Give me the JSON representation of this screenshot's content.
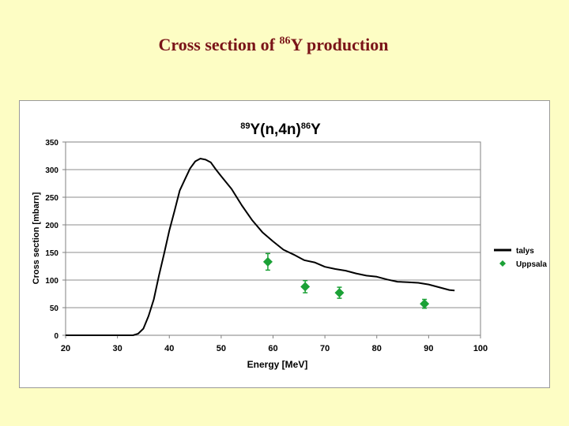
{
  "slide": {
    "title_prefix": "Cross section of ",
    "title_sup": "86",
    "title_suffix": "Y production"
  },
  "chart_data": {
    "type": "line",
    "title_parts": {
      "sup1": "89",
      "mid": "Y(n,4n)",
      "sup2": "86",
      "end": "Y"
    },
    "xlabel": "Energy [MeV]",
    "ylabel": "Cross section [mbarn]",
    "xlim": [
      20,
      100
    ],
    "ylim": [
      0,
      350
    ],
    "xticks": [
      20,
      30,
      40,
      50,
      60,
      70,
      80,
      90,
      100
    ],
    "yticks": [
      0,
      50,
      100,
      150,
      200,
      250,
      300,
      350
    ],
    "grid": "horizontal",
    "legend_position": "right",
    "series": [
      {
        "name": "talys",
        "kind": "line",
        "color": "#000000",
        "x": [
          20,
          33,
          34,
          35,
          36,
          37,
          38,
          39,
          40,
          41,
          42,
          43,
          44,
          45,
          46,
          47,
          48,
          49,
          50,
          52,
          54,
          56,
          58,
          60,
          62,
          64,
          66,
          68,
          70,
          72,
          74,
          76,
          78,
          80,
          82,
          84,
          86,
          88,
          90,
          92,
          94,
          95
        ],
        "y": [
          0,
          0,
          3,
          12,
          35,
          65,
          108,
          148,
          190,
          225,
          262,
          282,
          302,
          315,
          320,
          318,
          313,
          300,
          288,
          265,
          235,
          208,
          186,
          170,
          155,
          146,
          136,
          132,
          124,
          120,
          117,
          112,
          108,
          106,
          101,
          97,
          96,
          95,
          92,
          87,
          82,
          81
        ]
      },
      {
        "name": "Uppsala",
        "kind": "points",
        "color": "#1ba136",
        "x": [
          59,
          66.2,
          72.8,
          89.2
        ],
        "y": [
          133,
          88,
          77,
          57
        ],
        "err": [
          15,
          11,
          10,
          8
        ]
      }
    ]
  }
}
